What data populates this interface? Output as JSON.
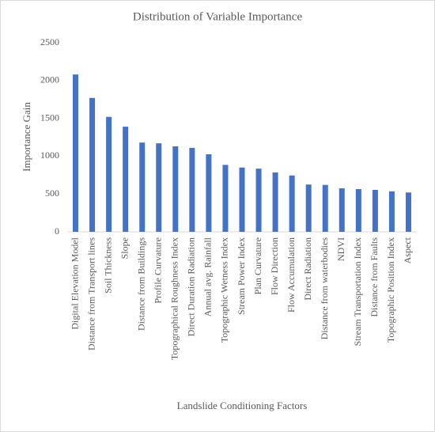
{
  "chart_data": {
    "type": "bar",
    "title": "Distribution of Variable Importance",
    "x_label": "Landslide Conditioning Factors",
    "y_label": "Importance Gain",
    "categories": [
      "Digital Elevation Model",
      "Distance from Transport lines",
      "Soil Thickness",
      "Slope",
      "Distance from Buildings",
      "Profile Curvature",
      "Topographical Roughness Index",
      "Direct Duration Radiation",
      "Annual avg. Rainfall",
      "Topographic Wetness Index",
      "Stream Power Index",
      "Plan Curvature",
      "Flow Direction",
      "Flow Accumulation",
      "Direct Radiation",
      "Distance from waterbodies",
      "NDVI",
      "Stream Transportation Index",
      "Distance from Faults",
      "Topographic Position Index",
      "Aspect"
    ],
    "values": [
      2080,
      1770,
      1520,
      1390,
      1180,
      1170,
      1130,
      1110,
      1025,
      885,
      850,
      835,
      785,
      745,
      625,
      620,
      575,
      565,
      555,
      535,
      520
    ],
    "color": "#4472c4",
    "ylim": [
      0,
      2500
    ],
    "yticks": [
      0,
      500,
      1000,
      1500,
      2000,
      2500
    ],
    "grid": false
  }
}
